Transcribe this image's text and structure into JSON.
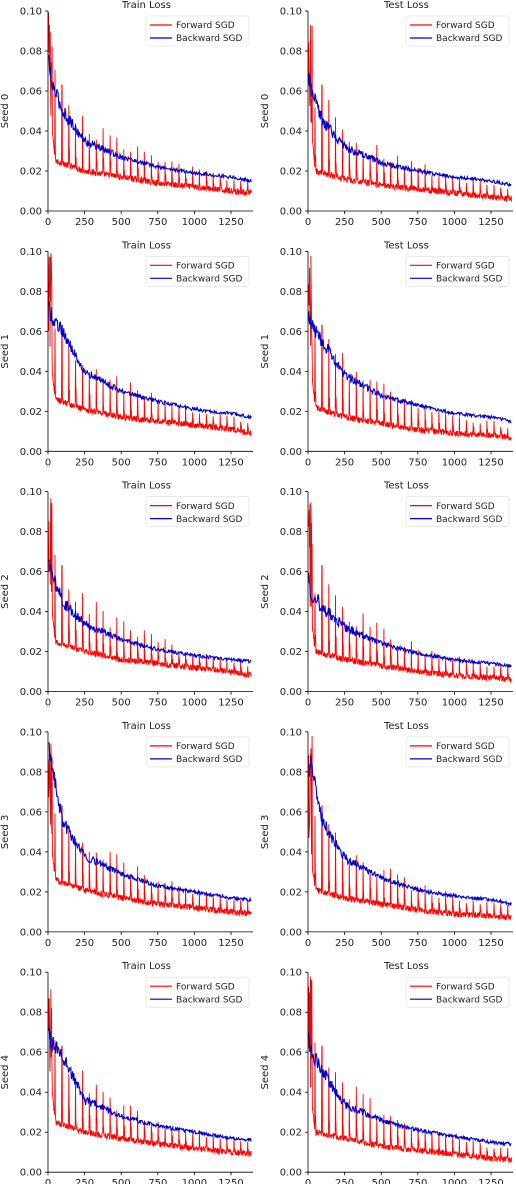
{
  "figure": {
    "background": "#ffffff",
    "colors": {
      "forward": "#ff0000",
      "backward": "#0000cc",
      "axis": "#000000"
    }
  },
  "chart_data": [
    {
      "type": "line",
      "row": 0,
      "col": 0,
      "title": "Train Loss",
      "ylabel": "Seed 0",
      "xlabel": "",
      "xlim": [
        0,
        1400
      ],
      "ylim": [
        0,
        0.1
      ],
      "xticks": [
        0,
        250,
        500,
        750,
        1000,
        1250
      ],
      "yticks": [
        0.0,
        0.02,
        0.04,
        0.06,
        0.08,
        0.1
      ],
      "legend_position": "top-right",
      "series": [
        {
          "name": "Forward SGD",
          "color": "#ff0000",
          "style": "spiky",
          "base": [
            [
              0,
              0.06
            ],
            [
              50,
              0.025
            ],
            [
              250,
              0.02
            ],
            [
              500,
              0.017
            ],
            [
              750,
              0.014
            ],
            [
              1000,
              0.012
            ],
            [
              1250,
              0.01
            ],
            [
              1390,
              0.009
            ]
          ],
          "peak_max": 0.1
        },
        {
          "name": "Backward SGD",
          "color": "#0000cc",
          "style": "smooth",
          "base": [
            [
              0,
              0.08
            ],
            [
              20,
              0.065
            ],
            [
              100,
              0.05
            ],
            [
              250,
              0.035
            ],
            [
              500,
              0.027
            ],
            [
              750,
              0.022
            ],
            [
              1000,
              0.019
            ],
            [
              1250,
              0.017
            ],
            [
              1390,
              0.015
            ]
          ]
        }
      ]
    },
    {
      "type": "line",
      "row": 0,
      "col": 1,
      "title": "Test Loss",
      "ylabel": "Seed 0",
      "xlabel": "",
      "xlim": [
        0,
        1400
      ],
      "ylim": [
        0,
        0.1
      ],
      "xticks": [
        0,
        250,
        500,
        750,
        1000,
        1250
      ],
      "yticks": [
        0.0,
        0.02,
        0.04,
        0.06,
        0.08,
        0.1
      ],
      "legend_position": "top-right",
      "series": [
        {
          "name": "Forward SGD",
          "color": "#ff0000",
          "style": "spiky",
          "base": [
            [
              0,
              0.06
            ],
            [
              50,
              0.02
            ],
            [
              250,
              0.016
            ],
            [
              500,
              0.013
            ],
            [
              750,
              0.011
            ],
            [
              1000,
              0.009
            ],
            [
              1250,
              0.007
            ],
            [
              1390,
              0.006
            ]
          ],
          "peak_max": 0.1
        },
        {
          "name": "Backward SGD",
          "color": "#0000cc",
          "style": "smooth",
          "base": [
            [
              0,
              0.07
            ],
            [
              20,
              0.06
            ],
            [
              100,
              0.045
            ],
            [
              250,
              0.032
            ],
            [
              500,
              0.024
            ],
            [
              750,
              0.02
            ],
            [
              1000,
              0.017
            ],
            [
              1250,
              0.015
            ],
            [
              1390,
              0.013
            ]
          ]
        }
      ]
    },
    {
      "type": "line",
      "row": 1,
      "col": 0,
      "title": "Train Loss",
      "ylabel": "Seed 1",
      "xlabel": "",
      "xlim": [
        0,
        1400
      ],
      "ylim": [
        0,
        0.1
      ],
      "xticks": [
        0,
        250,
        500,
        750,
        1000,
        1250
      ],
      "yticks": [
        0.0,
        0.02,
        0.04,
        0.06,
        0.08,
        0.1
      ],
      "legend_position": "top-right",
      "series": [
        {
          "name": "Forward SGD",
          "color": "#ff0000",
          "style": "spiky",
          "base": [
            [
              0,
              0.06
            ],
            [
              50,
              0.026
            ],
            [
              250,
              0.021
            ],
            [
              500,
              0.017
            ],
            [
              750,
              0.015
            ],
            [
              1000,
              0.013
            ],
            [
              1250,
              0.011
            ],
            [
              1390,
              0.009
            ]
          ],
          "peak_max": 0.1
        },
        {
          "name": "Backward SGD",
          "color": "#0000cc",
          "style": "smooth",
          "base": [
            [
              0,
              0.075
            ],
            [
              20,
              0.068
            ],
            [
              100,
              0.06
            ],
            [
              250,
              0.04
            ],
            [
              500,
              0.03
            ],
            [
              750,
              0.025
            ],
            [
              1000,
              0.021
            ],
            [
              1250,
              0.019
            ],
            [
              1390,
              0.017
            ]
          ]
        }
      ]
    },
    {
      "type": "line",
      "row": 1,
      "col": 1,
      "title": "Test Loss",
      "ylabel": "Seed 1",
      "xlabel": "",
      "xlim": [
        0,
        1400
      ],
      "ylim": [
        0,
        0.1
      ],
      "xticks": [
        0,
        250,
        500,
        750,
        1000,
        1250
      ],
      "yticks": [
        0.0,
        0.02,
        0.04,
        0.06,
        0.08,
        0.1
      ],
      "legend_position": "top-right",
      "series": [
        {
          "name": "Forward SGD",
          "color": "#ff0000",
          "style": "spiky",
          "base": [
            [
              0,
              0.055
            ],
            [
              50,
              0.022
            ],
            [
              250,
              0.017
            ],
            [
              500,
              0.014
            ],
            [
              750,
              0.011
            ],
            [
              1000,
              0.009
            ],
            [
              1250,
              0.008
            ],
            [
              1390,
              0.007
            ]
          ],
          "peak_max": 0.1
        },
        {
          "name": "Backward SGD",
          "color": "#0000cc",
          "style": "smooth",
          "base": [
            [
              0,
              0.07
            ],
            [
              20,
              0.063
            ],
            [
              100,
              0.055
            ],
            [
              250,
              0.038
            ],
            [
              500,
              0.028
            ],
            [
              750,
              0.023
            ],
            [
              1000,
              0.019
            ],
            [
              1250,
              0.017
            ],
            [
              1390,
              0.015
            ]
          ]
        }
      ]
    },
    {
      "type": "line",
      "row": 2,
      "col": 0,
      "title": "Train Loss",
      "ylabel": "Seed 2",
      "xlabel": "",
      "xlim": [
        0,
        1400
      ],
      "ylim": [
        0,
        0.1
      ],
      "xticks": [
        0,
        250,
        500,
        750,
        1000,
        1250
      ],
      "yticks": [
        0.0,
        0.02,
        0.04,
        0.06,
        0.08,
        0.1
      ],
      "legend_position": "top-right",
      "series": [
        {
          "name": "Forward SGD",
          "color": "#ff0000",
          "style": "spiky",
          "base": [
            [
              0,
              0.06
            ],
            [
              50,
              0.025
            ],
            [
              250,
              0.02
            ],
            [
              500,
              0.016
            ],
            [
              750,
              0.014
            ],
            [
              1000,
              0.012
            ],
            [
              1250,
              0.01
            ],
            [
              1390,
              0.008
            ]
          ],
          "peak_max": 0.1
        },
        {
          "name": "Backward SGD",
          "color": "#0000cc",
          "style": "smooth",
          "base": [
            [
              0,
              0.065
            ],
            [
              20,
              0.06
            ],
            [
              100,
              0.045
            ],
            [
              250,
              0.034
            ],
            [
              500,
              0.026
            ],
            [
              750,
              0.021
            ],
            [
              1000,
              0.018
            ],
            [
              1250,
              0.016
            ],
            [
              1390,
              0.015
            ]
          ]
        }
      ]
    },
    {
      "type": "line",
      "row": 2,
      "col": 1,
      "title": "Test Loss",
      "ylabel": "Seed 2",
      "xlabel": "",
      "xlim": [
        0,
        1400
      ],
      "ylim": [
        0,
        0.1
      ],
      "xticks": [
        0,
        250,
        500,
        750,
        1000,
        1250
      ],
      "yticks": [
        0.0,
        0.02,
        0.04,
        0.06,
        0.08,
        0.1
      ],
      "legend_position": "top-right",
      "series": [
        {
          "name": "Forward SGD",
          "color": "#ff0000",
          "style": "spiky",
          "base": [
            [
              0,
              0.05
            ],
            [
              50,
              0.02
            ],
            [
              250,
              0.016
            ],
            [
              500,
              0.013
            ],
            [
              750,
              0.01
            ],
            [
              1000,
              0.008
            ],
            [
              1250,
              0.007
            ],
            [
              1390,
              0.006
            ]
          ],
          "peak_max": 0.1
        },
        {
          "name": "Backward SGD",
          "color": "#0000cc",
          "style": "smooth",
          "base": [
            [
              0,
              0.06
            ],
            [
              20,
              0.05
            ],
            [
              100,
              0.042
            ],
            [
              250,
              0.032
            ],
            [
              500,
              0.024
            ],
            [
              750,
              0.019
            ],
            [
              1000,
              0.016
            ],
            [
              1250,
              0.014
            ],
            [
              1390,
              0.013
            ]
          ]
        }
      ]
    },
    {
      "type": "line",
      "row": 3,
      "col": 0,
      "title": "Train Loss",
      "ylabel": "Seed 3",
      "xlabel": "",
      "xlim": [
        0,
        1400
      ],
      "ylim": [
        0,
        0.1
      ],
      "xticks": [
        0,
        250,
        500,
        750,
        1000,
        1250
      ],
      "yticks": [
        0.0,
        0.02,
        0.04,
        0.06,
        0.08,
        0.1
      ],
      "legend_position": "top-right",
      "series": [
        {
          "name": "Forward SGD",
          "color": "#ff0000",
          "style": "spiky",
          "base": [
            [
              0,
              0.06
            ],
            [
              50,
              0.026
            ],
            [
              250,
              0.021
            ],
            [
              500,
              0.017
            ],
            [
              750,
              0.014
            ],
            [
              1000,
              0.012
            ],
            [
              1250,
              0.01
            ],
            [
              1390,
              0.009
            ]
          ],
          "peak_max": 0.1
        },
        {
          "name": "Backward SGD",
          "color": "#0000cc",
          "style": "smooth",
          "base": [
            [
              0,
              0.095
            ],
            [
              20,
              0.085
            ],
            [
              100,
              0.055
            ],
            [
              250,
              0.038
            ],
            [
              500,
              0.029
            ],
            [
              750,
              0.023
            ],
            [
              1000,
              0.02
            ],
            [
              1250,
              0.017
            ],
            [
              1390,
              0.016
            ]
          ]
        }
      ]
    },
    {
      "type": "line",
      "row": 3,
      "col": 1,
      "title": "Test Loss",
      "ylabel": "Seed 3",
      "xlabel": "",
      "xlim": [
        0,
        1400
      ],
      "ylim": [
        0,
        0.1
      ],
      "xticks": [
        0,
        250,
        500,
        750,
        1000,
        1250
      ],
      "yticks": [
        0.0,
        0.02,
        0.04,
        0.06,
        0.08,
        0.1
      ],
      "legend_position": "top-right",
      "series": [
        {
          "name": "Forward SGD",
          "color": "#ff0000",
          "style": "spiky",
          "base": [
            [
              0,
              0.05
            ],
            [
              50,
              0.021
            ],
            [
              250,
              0.017
            ],
            [
              500,
              0.014
            ],
            [
              750,
              0.011
            ],
            [
              1000,
              0.009
            ],
            [
              1250,
              0.008
            ],
            [
              1390,
              0.007
            ]
          ],
          "peak_max": 0.1
        },
        {
          "name": "Backward SGD",
          "color": "#0000cc",
          "style": "smooth",
          "base": [
            [
              0,
              0.075
            ],
            [
              20,
              0.085
            ],
            [
              100,
              0.055
            ],
            [
              250,
              0.037
            ],
            [
              500,
              0.027
            ],
            [
              750,
              0.021
            ],
            [
              1000,
              0.018
            ],
            [
              1250,
              0.016
            ],
            [
              1390,
              0.014
            ]
          ]
        }
      ]
    },
    {
      "type": "line",
      "row": 4,
      "col": 0,
      "title": "Train Loss",
      "ylabel": "Seed 4",
      "xlabel": "",
      "xlim": [
        0,
        1400
      ],
      "ylim": [
        0,
        0.1
      ],
      "xticks": [
        0,
        250,
        500,
        750,
        1000,
        1250
      ],
      "yticks": [
        0.0,
        0.02,
        0.04,
        0.06,
        0.08,
        0.1
      ],
      "legend_position": "top-right",
      "series": [
        {
          "name": "Forward SGD",
          "color": "#ff0000",
          "style": "spiky",
          "base": [
            [
              0,
              0.06
            ],
            [
              50,
              0.025
            ],
            [
              250,
              0.02
            ],
            [
              500,
              0.017
            ],
            [
              750,
              0.014
            ],
            [
              1000,
              0.012
            ],
            [
              1250,
              0.01
            ],
            [
              1390,
              0.009
            ]
          ],
          "peak_max": 0.1
        },
        {
          "name": "Backward SGD",
          "color": "#0000cc",
          "style": "smooth",
          "base": [
            [
              0,
              0.07
            ],
            [
              20,
              0.065
            ],
            [
              100,
              0.058
            ],
            [
              250,
              0.036
            ],
            [
              500,
              0.028
            ],
            [
              750,
              0.023
            ],
            [
              1000,
              0.02
            ],
            [
              1250,
              0.017
            ],
            [
              1390,
              0.016
            ]
          ]
        }
      ]
    },
    {
      "type": "line",
      "row": 4,
      "col": 1,
      "title": "Test Loss",
      "ylabel": "Seed 4",
      "xlabel": "",
      "xlim": [
        0,
        1400
      ],
      "ylim": [
        0,
        0.1
      ],
      "xticks": [
        0,
        250,
        500,
        750,
        1000,
        1250
      ],
      "yticks": [
        0.0,
        0.02,
        0.04,
        0.06,
        0.08,
        0.1
      ],
      "legend_position": "top-right",
      "series": [
        {
          "name": "Forward SGD",
          "color": "#ff0000",
          "style": "spiky",
          "base": [
            [
              0,
              0.05
            ],
            [
              50,
              0.02
            ],
            [
              250,
              0.017
            ],
            [
              500,
              0.013
            ],
            [
              750,
              0.011
            ],
            [
              1000,
              0.009
            ],
            [
              1250,
              0.007
            ],
            [
              1390,
              0.006
            ]
          ],
          "peak_max": 0.1
        },
        {
          "name": "Backward SGD",
          "color": "#0000cc",
          "style": "smooth",
          "base": [
            [
              0,
              0.07
            ],
            [
              20,
              0.06
            ],
            [
              100,
              0.05
            ],
            [
              250,
              0.034
            ],
            [
              500,
              0.026
            ],
            [
              750,
              0.021
            ],
            [
              1000,
              0.018
            ],
            [
              1250,
              0.015
            ],
            [
              1390,
              0.014
            ]
          ]
        }
      ]
    }
  ]
}
